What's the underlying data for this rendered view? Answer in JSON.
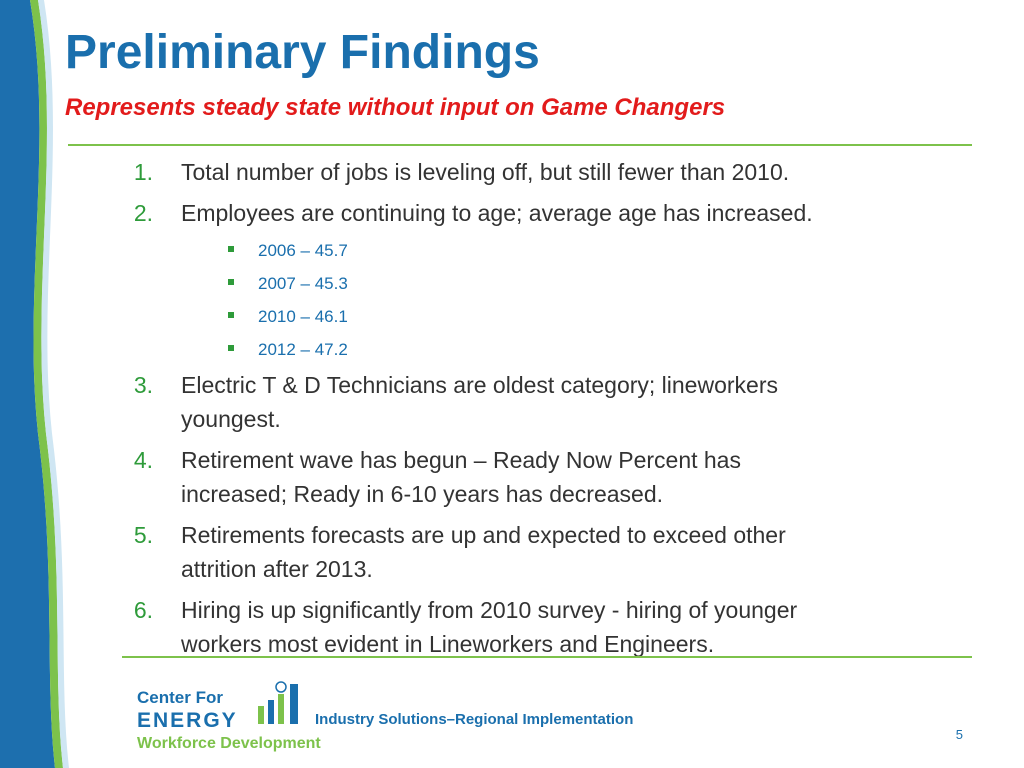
{
  "slide": {
    "title": "Preliminary Findings",
    "subtitle": "Represents steady state without input on Game Changers",
    "items": [
      {
        "number": "1.",
        "lines": [
          "Total number of jobs is leveling off, but still fewer than 2010."
        ],
        "subitems": []
      },
      {
        "number": "2.",
        "lines": [
          "Employees are continuing to age; average age has increased."
        ],
        "subitems": [
          "2006 – 45.7",
          "2007 – 45.3",
          "2010 – 46.1",
          "2012 – 47.2"
        ]
      },
      {
        "number": "3.",
        "lines": [
          "Electric T & D Technicians are oldest category; lineworkers",
          "youngest."
        ],
        "subitems": []
      },
      {
        "number": "4.",
        "lines": [
          "Retirement wave has begun – Ready Now Percent has",
          "increased; Ready in 6-10 years has decreased."
        ],
        "subitems": []
      },
      {
        "number": "5.",
        "lines": [
          "Retirements forecasts are up and expected to exceed other",
          "attrition after 2013."
        ],
        "subitems": []
      },
      {
        "number": "6.",
        "lines": [
          "Hiring is up significantly from 2010 survey - hiring of younger",
          "workers most evident in Lineworkers and Engineers."
        ],
        "subitems": []
      }
    ],
    "logo": {
      "line1": "Center For",
      "line2": "ENERGY",
      "line3": "Workforce Development",
      "tagline": "Industry Solutions–Regional Implementation"
    },
    "page_number": "5"
  }
}
